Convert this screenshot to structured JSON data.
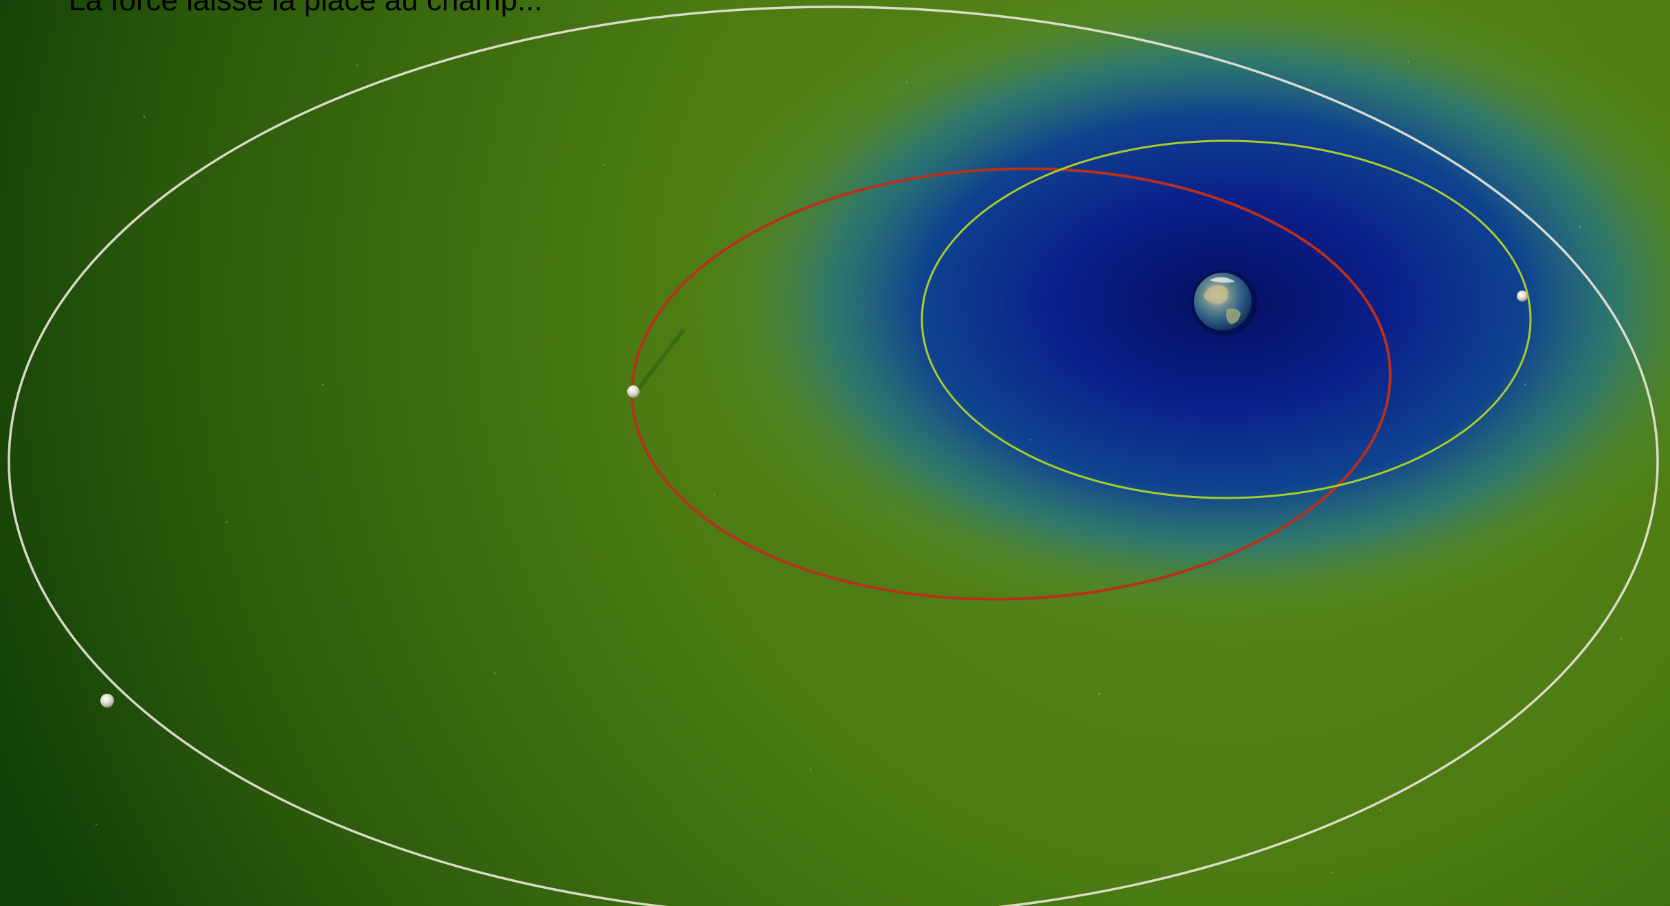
{
  "caption": "La force laisse la place au champ...",
  "colors": {
    "outer_field": "#4e7d12",
    "edge_field": "#123f07",
    "inner_field": "#0a1f8a",
    "core_field": "#061265",
    "orbit_large": "#e7e5d6",
    "orbit_red": "#b8301c",
    "orbit_green": "#a9cc2b",
    "satellite": "#e6e3d4"
  },
  "icons": {
    "central_body": "earth-icon",
    "satellite": "moon-icon"
  }
}
